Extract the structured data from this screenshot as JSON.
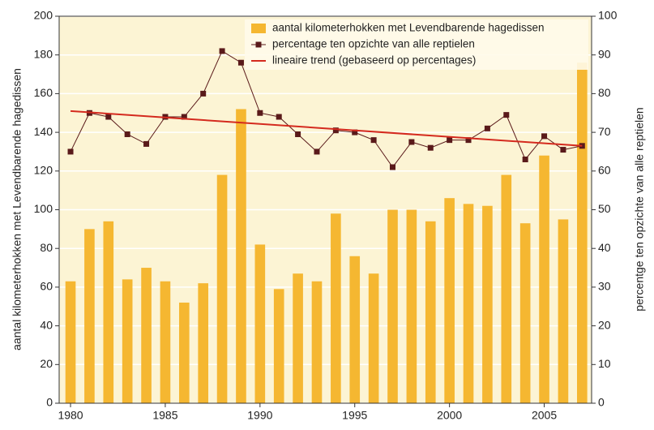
{
  "chart_data": {
    "type": "bar-line",
    "x": [
      1980,
      1981,
      1982,
      1983,
      1984,
      1985,
      1986,
      1987,
      1988,
      1989,
      1990,
      1991,
      1992,
      1993,
      1994,
      1995,
      1996,
      1997,
      1998,
      1999,
      2000,
      2001,
      2002,
      2003,
      2004,
      2005,
      2006,
      2007
    ],
    "xlim": [
      1979.4,
      2007.5
    ],
    "xticks": [
      1980,
      1985,
      1990,
      1995,
      2000,
      2005
    ],
    "ylabel": "aantal kilometerhokken met Levendbarende hagedissen",
    "y2label": "percentge ten opzichte van alle reptielen",
    "ylim": [
      0,
      200
    ],
    "yticks": [
      0,
      20,
      40,
      60,
      80,
      100,
      120,
      140,
      160,
      180,
      200
    ],
    "y2lim": [
      0,
      100
    ],
    "y2ticks": [
      0,
      10,
      20,
      30,
      40,
      50,
      60,
      70,
      80,
      90,
      100
    ],
    "grid": true,
    "legend": "top-right",
    "series": [
      {
        "name": "aantal kilometerhokken met Levendbarende hagedissen",
        "type": "bar",
        "color": "#f5b731",
        "values": [
          63,
          90,
          94,
          64,
          70,
          63,
          52,
          62,
          118,
          152,
          82,
          59,
          67,
          63,
          98,
          76,
          67,
          100,
          100,
          94,
          106,
          103,
          102,
          118,
          93,
          128,
          95,
          176
        ]
      },
      {
        "name": "percentage ten opzichte van alle reptielen",
        "type": "line",
        "axis": "y2",
        "color": "#5a1a1a",
        "values": [
          65,
          75,
          74,
          69.5,
          67,
          74,
          74,
          80,
          91,
          88,
          75,
          74,
          69.5,
          65,
          70.5,
          70,
          68,
          61,
          67.5,
          66,
          68,
          68,
          71,
          74.5,
          63,
          69,
          65.5,
          66.5
        ]
      },
      {
        "name": "lineaire trend (gebaseerd op percentages)",
        "type": "trend",
        "axis": "y2",
        "color": "#d42a1e",
        "x": [
          1980,
          2007
        ],
        "values": [
          75.5,
          66.5
        ]
      }
    ]
  }
}
